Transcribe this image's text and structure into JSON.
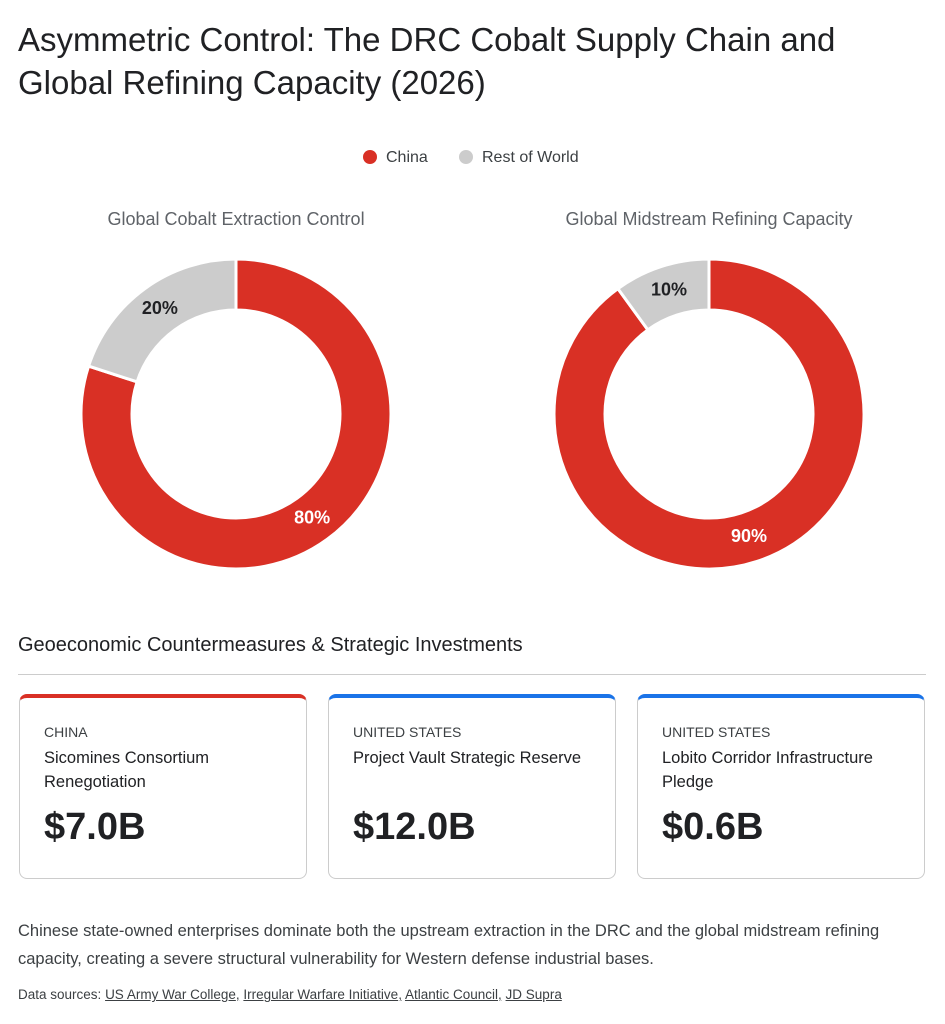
{
  "title": "Asymmetric Control: The DRC Cobalt Supply Chain and Global Refining Capacity (2026)",
  "chart_data": [
    {
      "type": "pie",
      "donut": true,
      "title": "Global Cobalt Extraction Control",
      "categories": [
        "China",
        "Rest of World"
      ],
      "values": [
        80,
        20
      ],
      "value_labels": [
        "80%",
        "20%"
      ],
      "colors": [
        "#d93025",
        "#cccccc"
      ]
    },
    {
      "type": "pie",
      "donut": true,
      "title": "Global Midstream Refining Capacity",
      "categories": [
        "China",
        "Rest of World"
      ],
      "values": [
        90,
        10
      ],
      "value_labels": [
        "90%",
        "10%"
      ],
      "colors": [
        "#d93025",
        "#cccccc"
      ]
    }
  ],
  "section_title": "Geoeconomic Countermeasures & Strategic Investments",
  "cards": [
    {
      "country": "CHINA",
      "name": "Sicomines Consortium Renegotiation",
      "amount": "$7.0B",
      "color": "#d93025"
    },
    {
      "country": "UNITED STATES",
      "name": "Project Vault Strategic Reserve",
      "amount": "$12.0B",
      "color": "#1a73e8"
    },
    {
      "country": "UNITED STATES",
      "name": "Lobito Corridor Infrastructure Pledge",
      "amount": "$0.6B",
      "color": "#1a73e8"
    }
  ],
  "note": "Chinese state-owned enterprises dominate both the upstream extraction in the DRC and the global midstream refining capacity, creating a severe structural vulnerability for Western defense industrial bases.",
  "sources_label": "Data sources:",
  "sources": [
    "US Army War College",
    "Irregular Warfare Initiative",
    "Atlantic Council",
    "JD Supra"
  ]
}
